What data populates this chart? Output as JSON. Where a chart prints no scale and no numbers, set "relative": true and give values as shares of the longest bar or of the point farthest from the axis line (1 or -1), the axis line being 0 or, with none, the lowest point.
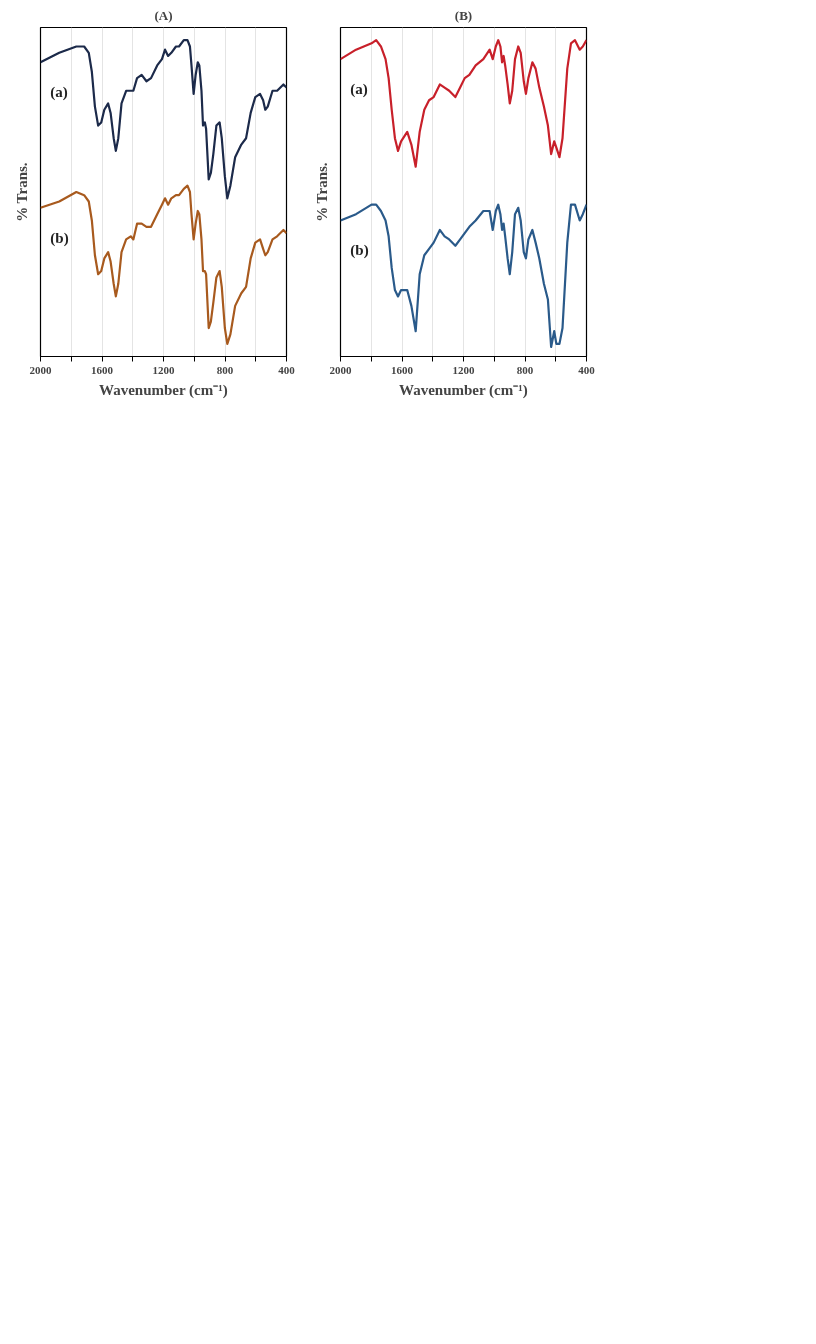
{
  "chart_data": [
    {
      "type": "line",
      "title": "(A)",
      "xlabel": "Wavenumber (cm⁻¹)",
      "ylabel": "% Trans.",
      "relative": true,
      "grid": "x",
      "legend": false,
      "xlim": [
        2000,
        400
      ],
      "xticks": [
        2000,
        {
          "value": 1800,
          "label": null
        },
        1600,
        {
          "value": 1400,
          "label": null
        },
        1200,
        {
          "value": 1000,
          "label": null
        },
        800,
        {
          "value": 600,
          "label": null
        },
        400
      ],
      "x": [
        2000,
        1878,
        1767,
        1716,
        1686,
        1666,
        1646,
        1625,
        1605,
        1585,
        1560,
        1544,
        1524,
        1510,
        1494,
        1473,
        1443,
        1413,
        1396,
        1372,
        1342,
        1311,
        1281,
        1241,
        1210,
        1190,
        1170,
        1149,
        1119,
        1099,
        1068,
        1044,
        1028,
        1018,
        1004,
        991,
        977,
        967,
        953,
        943,
        931,
        923,
        906,
        892,
        876,
        856,
        835,
        821,
        801,
        785,
        765,
        734,
        694,
        663,
        633,
        603,
        572,
        552,
        538,
        522,
        491,
        461,
        420,
        400
      ],
      "series": [
        {
          "name": "(a)",
          "color": "#1c2a4a",
          "values": [
            0.93,
            0.96,
            0.98,
            0.98,
            0.96,
            0.9,
            0.79,
            0.73,
            0.74,
            0.78,
            0.8,
            0.77,
            0.69,
            0.65,
            0.69,
            0.8,
            0.84,
            0.84,
            0.84,
            0.88,
            0.89,
            0.87,
            0.88,
            0.92,
            0.94,
            0.97,
            0.95,
            0.96,
            0.98,
            0.98,
            1.0,
            1.0,
            0.98,
            0.92,
            0.83,
            0.89,
            0.93,
            0.92,
            0.84,
            0.73,
            0.74,
            0.72,
            0.56,
            0.58,
            0.64,
            0.73,
            0.74,
            0.69,
            0.57,
            0.5,
            0.54,
            0.63,
            0.67,
            0.69,
            0.77,
            0.82,
            0.83,
            0.81,
            0.78,
            0.79,
            0.84,
            0.84,
            0.86,
            0.85
          ]
        },
        {
          "name": "(b)",
          "color": "#a85a1e",
          "values": [
            0.47,
            0.49,
            0.52,
            0.51,
            0.49,
            0.43,
            0.32,
            0.26,
            0.27,
            0.31,
            0.33,
            0.3,
            0.23,
            0.19,
            0.23,
            0.33,
            0.37,
            0.38,
            0.37,
            0.42,
            0.42,
            0.41,
            0.41,
            0.45,
            0.48,
            0.5,
            0.48,
            0.5,
            0.51,
            0.51,
            0.53,
            0.54,
            0.52,
            0.45,
            0.37,
            0.42,
            0.46,
            0.45,
            0.37,
            0.27,
            0.27,
            0.26,
            0.09,
            0.11,
            0.17,
            0.25,
            0.27,
            0.22,
            0.09,
            0.04,
            0.07,
            0.16,
            0.2,
            0.22,
            0.31,
            0.36,
            0.37,
            0.34,
            0.32,
            0.33,
            0.37,
            0.38,
            0.4,
            0.39
          ]
        }
      ]
    },
    {
      "type": "line",
      "title": "(B)",
      "xlabel": "Wavenumber (cm⁻¹)",
      "ylabel": "% Trans.",
      "relative": true,
      "grid": "x",
      "legend": false,
      "xlim": [
        2000,
        400
      ],
      "xticks": [
        2000,
        {
          "value": 1800,
          "label": null
        },
        1600,
        {
          "value": 1400,
          "label": null
        },
        1200,
        {
          "value": 1000,
          "label": null
        },
        800,
        {
          "value": 600,
          "label": null
        },
        400
      ],
      "x": [
        2000,
        1899,
        1798,
        1768,
        1737,
        1707,
        1687,
        1667,
        1646,
        1626,
        1606,
        1566,
        1539,
        1511,
        1485,
        1455,
        1424,
        1394,
        1354,
        1323,
        1293,
        1253,
        1222,
        1192,
        1162,
        1121,
        1071,
        1030,
        1010,
        990,
        974,
        960,
        949,
        939,
        929,
        913,
        899,
        883,
        865,
        844,
        828,
        808,
        794,
        778,
        752,
        731,
        707,
        677,
        651,
        630,
        610,
        596,
        576,
        556,
        525,
        501,
        475,
        444,
        424,
        400
      ],
      "series": [
        {
          "name": "(a)",
          "color": "#c8202a",
          "values": [
            0.94,
            0.97,
            0.99,
            1.0,
            0.98,
            0.94,
            0.88,
            0.78,
            0.69,
            0.65,
            0.68,
            0.71,
            0.67,
            0.6,
            0.71,
            0.78,
            0.81,
            0.82,
            0.86,
            0.85,
            0.84,
            0.82,
            0.85,
            0.88,
            0.89,
            0.92,
            0.94,
            0.97,
            0.94,
            0.98,
            1.0,
            0.98,
            0.93,
            0.95,
            0.92,
            0.86,
            0.8,
            0.84,
            0.94,
            0.98,
            0.96,
            0.87,
            0.83,
            0.88,
            0.93,
            0.91,
            0.85,
            0.79,
            0.73,
            0.64,
            0.68,
            0.66,
            0.63,
            0.69,
            0.91,
            0.99,
            1.0,
            0.97,
            0.98,
            1.0
          ]
        },
        {
          "name": "(b)",
          "color": "#2a5a8a",
          "values": [
            0.43,
            0.45,
            0.48,
            0.48,
            0.46,
            0.43,
            0.38,
            0.28,
            0.21,
            0.19,
            0.21,
            0.21,
            0.16,
            0.08,
            0.26,
            0.32,
            0.34,
            0.36,
            0.4,
            0.38,
            0.37,
            0.35,
            0.37,
            0.39,
            0.41,
            0.43,
            0.46,
            0.46,
            0.4,
            0.46,
            0.48,
            0.45,
            0.4,
            0.42,
            0.38,
            0.31,
            0.26,
            0.33,
            0.45,
            0.47,
            0.43,
            0.33,
            0.31,
            0.37,
            0.4,
            0.36,
            0.31,
            0.23,
            0.18,
            0.03,
            0.08,
            0.04,
            0.04,
            0.09,
            0.36,
            0.48,
            0.48,
            0.43,
            0.45,
            0.48
          ]
        }
      ]
    }
  ]
}
